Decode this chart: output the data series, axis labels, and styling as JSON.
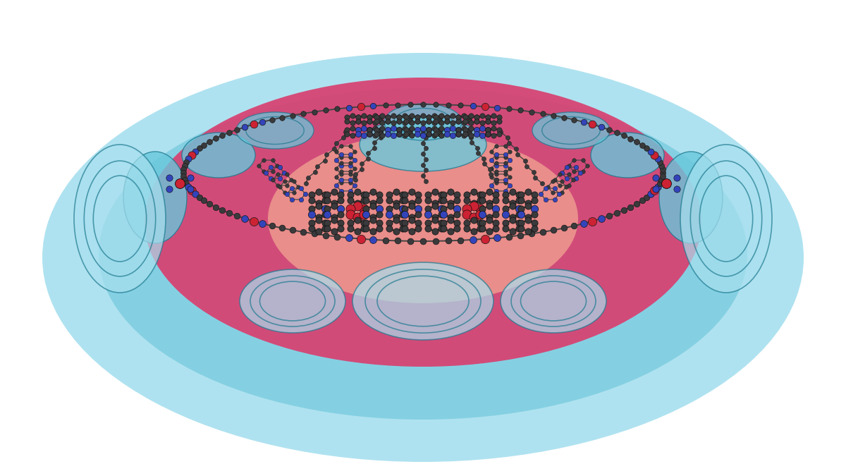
{
  "background_color": "#ffffff",
  "atom_colors": {
    "carbon": "#3a3a3c",
    "nitrogen": "#3344bb",
    "iron": "#cc2233"
  },
  "colors": {
    "outer_halo": "#a8e0ef",
    "outer_halo2": "#7dcde0",
    "red_platform": "#d84070",
    "red_platform_edge": "#c83060",
    "peach_center": "#f0a090",
    "blue_contour_fill": "#5bbdd4",
    "blue_contour_edge": "#1e7a90",
    "cyan_region": "#6ac8dc"
  },
  "layout": {
    "fig_w": 12.0,
    "fig_h": 6.75,
    "dpi": 100,
    "xlim": [
      0,
      1200
    ],
    "ylim": [
      0,
      675
    ]
  }
}
